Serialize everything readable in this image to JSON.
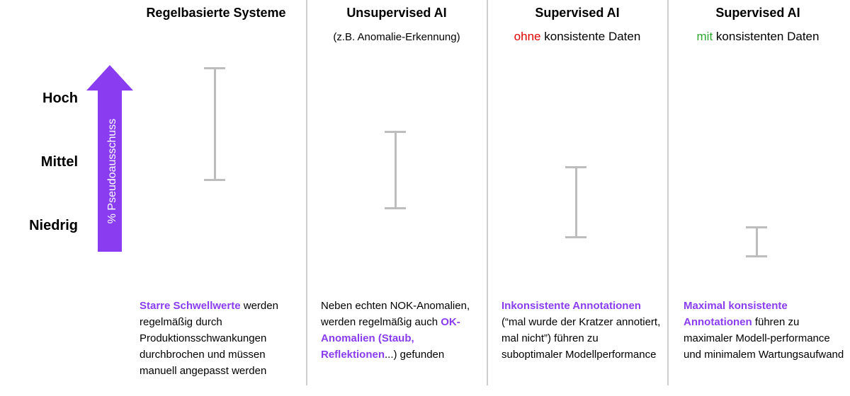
{
  "levels": [
    "Hoch",
    "Mittel",
    "Niedrig"
  ],
  "axis_label": "% Pseudoausschuss",
  "arrow_color": "#8a3cf0",
  "columns": [
    {
      "title": "Regelbasierte Systeme",
      "subtitle": "",
      "range_levels": {
        "top": 3.5,
        "bottom": 1.75
      },
      "desc": {
        "hl": "Starre Schwellwerte",
        "text": "werden regelmäßig durch Produktionsschwankungen durchbrochen und müssen manuell angepasst werden"
      }
    },
    {
      "title": "Unsupervised AI",
      "subtitle": "(z.B. Anomalie-Erkennung)",
      "range_levels": {
        "top": 2.5,
        "bottom": 1.3
      },
      "desc": {
        "pre": "Neben echten NOK-Anomalien, werden regelmäßig auch",
        "hl": "OK-Anomalien (Staub, Reflektionen",
        "post": "...) gefunden"
      }
    },
    {
      "title": "Supervised AI",
      "subtitle_colored": "ohne",
      "subtitle_rest": "konsistente Daten",
      "subtitle_color": "#e00000",
      "range_levels": {
        "top": 1.95,
        "bottom": 0.85
      },
      "desc": {
        "hl": "Inkonsistente Annotationen",
        "text": "(“mal wurde der Kratzer annotiert, mal nicht”) führen zu suboptimaler Modellperformance"
      }
    },
    {
      "title": "Supervised AI",
      "subtitle_colored": "mit",
      "subtitle_rest": "konsistenten Daten",
      "subtitle_color": "#2fa82f",
      "range_levels": {
        "top": 1.0,
        "bottom": 0.55
      },
      "desc": {
        "hl": "Maximal konsistente Annotationen",
        "text": "führen zu maximaler Modell-performance und minimalem Wartungsaufwand"
      }
    }
  ]
}
